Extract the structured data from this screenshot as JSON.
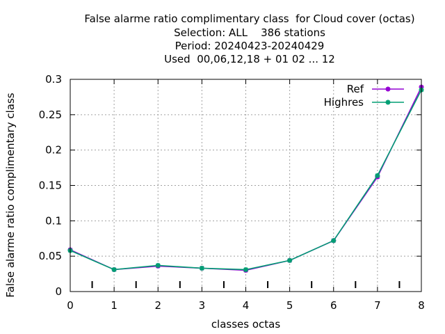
{
  "chart_data": {
    "type": "line",
    "title_lines": [
      "False alarme ratio complimentary class  for Cloud cover (octas)",
      "Selection: ALL    386 stations",
      "Period: 20240423-20240429",
      "Used  00,06,12,18 + 01 02 ... 12"
    ],
    "xlabel": "classes octas",
    "ylabel": "False alarme ratio complimentary class",
    "xlim": [
      0,
      8
    ],
    "ylim": [
      0,
      0.3
    ],
    "x_ticks": [
      0,
      1,
      2,
      3,
      4,
      5,
      6,
      7,
      8
    ],
    "x_tick_labels": [
      "0",
      "1",
      "2",
      "3",
      "4",
      "5",
      "6",
      "7",
      "8"
    ],
    "y_ticks": [
      0,
      0.05,
      0.1,
      0.15,
      0.2,
      0.25,
      0.3
    ],
    "y_tick_labels": [
      "0",
      "0.05",
      "0.1",
      "0.15",
      "0.2",
      "0.25",
      "0.3"
    ],
    "grid": true,
    "legend_position": "top-right",
    "x": [
      0,
      1,
      2,
      3,
      4,
      5,
      6,
      7,
      8
    ],
    "series": [
      {
        "name": "Ref",
        "color": "#9400d3",
        "values": [
          0.059,
          0.031,
          0.036,
          0.033,
          0.03,
          0.044,
          0.072,
          0.162,
          0.289
        ]
      },
      {
        "name": "Highres",
        "color": "#009e73",
        "values": [
          0.058,
          0.031,
          0.037,
          0.033,
          0.031,
          0.044,
          0.072,
          0.164,
          0.285
        ]
      }
    ]
  }
}
